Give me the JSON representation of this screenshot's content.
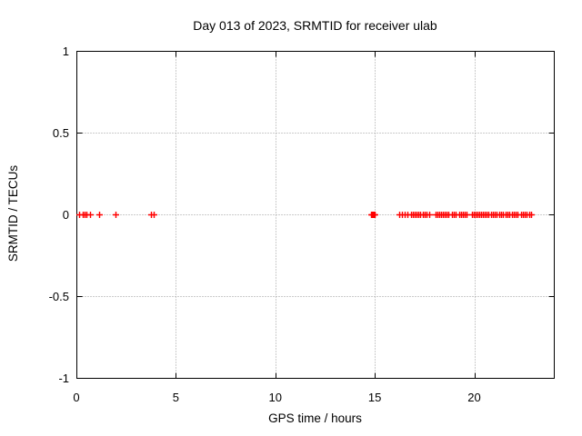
{
  "chart_data": {
    "type": "scatter",
    "title": "Day 013 of 2023, SRMTID for receiver ulab",
    "xlabel": "GPS time / hours",
    "ylabel": "SRMTID / TECUs",
    "xlim": [
      0,
      24
    ],
    "ylim": [
      -1,
      1
    ],
    "xticks": [
      0,
      5,
      10,
      15,
      20
    ],
    "yticks": [
      -1,
      -0.5,
      0,
      0.5,
      1
    ],
    "grid": true,
    "legend": "none",
    "background_color": "#ffffff",
    "border_color": "#000000",
    "grid_color": "#9a9a9a",
    "series": [
      {
        "name": "SRMTID",
        "marker": "plus",
        "color": "#ff0000",
        "y": 0,
        "x": [
          0.14,
          0.33,
          0.42,
          0.51,
          0.7,
          1.14,
          1.97,
          3.75,
          3.89,
          14.8,
          14.85,
          14.9,
          14.95,
          15.0,
          16.23,
          16.37,
          16.5,
          16.65,
          16.8,
          16.92,
          17.02,
          17.1,
          17.19,
          17.28,
          17.4,
          17.52,
          17.6,
          17.74,
          18.06,
          18.15,
          18.24,
          18.33,
          18.42,
          18.51,
          18.61,
          18.7,
          18.88,
          18.97,
          19.06,
          19.25,
          19.34,
          19.43,
          19.52,
          19.61,
          19.89,
          19.98,
          20.07,
          20.16,
          20.25,
          20.34,
          20.43,
          20.52,
          20.61,
          20.7,
          20.85,
          20.94,
          21.03,
          21.12,
          21.26,
          21.35,
          21.44,
          21.58,
          21.67,
          21.76,
          21.9,
          21.99,
          22.08,
          22.17,
          22.35,
          22.44,
          22.53,
          22.62,
          22.76,
          22.85
        ]
      }
    ]
  }
}
